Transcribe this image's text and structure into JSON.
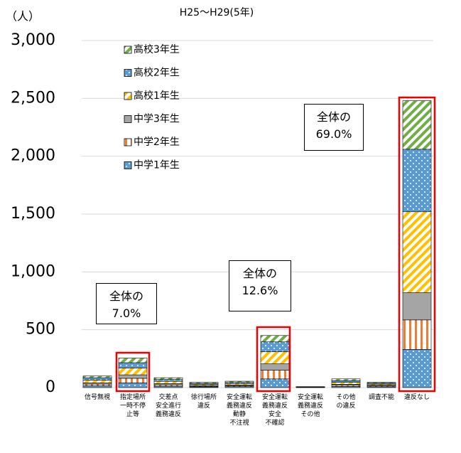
{
  "chart_data": {
    "type": "bar",
    "stacked": true,
    "title": "H25～H29(5年)",
    "y_label": "（人）",
    "categories": [
      "信号無視",
      "指定場所\n一時不停\n止等",
      "交差点\n安全進行\n義務違反",
      "徐行場所\n違反",
      "安全運転\n義務違反\n動静\n不注視",
      "安全運転\n義務違反\n安全\n不確認",
      "安全運転\n義務違反\nその他",
      "その他\nの違反",
      "調査不能",
      "違反なし"
    ],
    "series": [
      {
        "name": "中学1年生",
        "color": "#5b9bd5",
        "pattern": "dots",
        "values": [
          15,
          40,
          12,
          6,
          8,
          75,
          1,
          10,
          7,
          330
        ]
      },
      {
        "name": "中学2年生",
        "color": "#ed7d31",
        "pattern": "vertical",
        "values": [
          15,
          40,
          12,
          6,
          8,
          75,
          1,
          10,
          7,
          255
        ]
      },
      {
        "name": "中学3年生",
        "color": "#a5a5a5",
        "pattern": "solid",
        "values": [
          10,
          30,
          10,
          5,
          7,
          55,
          1,
          8,
          6,
          235
        ]
      },
      {
        "name": "高校1年生",
        "color": "#ffc000",
        "pattern": "diagonal",
        "values": [
          25,
          60,
          20,
          10,
          12,
          105,
          2,
          17,
          10,
          700
        ]
      },
      {
        "name": "高校2年生",
        "color": "#5b9bd5",
        "pattern": "dots",
        "values": [
          20,
          45,
          16,
          9,
          10,
          85,
          2,
          15,
          8,
          540
        ]
      },
      {
        "name": "高校3年生",
        "color": "#70ad47",
        "pattern": "diagonal",
        "values": [
          15,
          40,
          15,
          9,
          10,
          55,
          1,
          15,
          7,
          420
        ]
      }
    ],
    "ylim": [
      0,
      3000
    ],
    "yticks": [
      0,
      500,
      {
        "value": 1000,
        "label": "1,000"
      },
      {
        "value": 1500,
        "label": "1,500"
      },
      {
        "value": 2000,
        "label": "2,000"
      },
      {
        "value": 2500,
        "label": "2,500"
      },
      {
        "value": 3000,
        "label": "3,000"
      }
    ],
    "grid": true,
    "annotations": [
      "全体の\n7.0%",
      "全体の\n12.6%",
      "全体の\n69.0%"
    ]
  }
}
